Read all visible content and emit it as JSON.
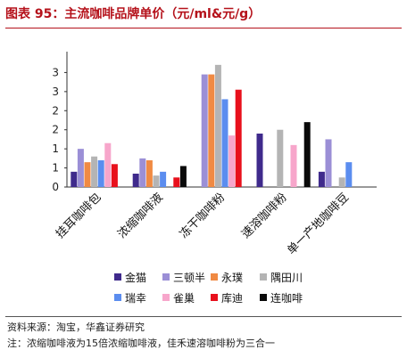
{
  "title": "图表 95：主流咖啡品牌单价（元/ml&元/g）",
  "footer": {
    "source": "资料来源：淘宝，华鑫证券研究",
    "note": "注：浓缩咖啡液为15倍浓缩咖啡液，佳禾速溶咖啡粉为三合一"
  },
  "chart_data": {
    "type": "bar",
    "categories": [
      "挂耳咖啡包",
      "浓缩咖啡液",
      "冻干咖啡粉",
      "速溶咖啡粉",
      "单一产地咖啡豆"
    ],
    "y_tick_labels": [
      "0",
      "1",
      "1",
      "2",
      "2",
      "3",
      "3"
    ],
    "ylim": [
      0,
      3.5
    ],
    "grid": false,
    "legend_position": "bottom",
    "series": [
      {
        "name": "金猫",
        "color": "#3f2a8c",
        "values": [
          0.4,
          0.35,
          0,
          1.4,
          0.4
        ]
      },
      {
        "name": "三顿半",
        "color": "#9b8fd6",
        "values": [
          1.0,
          0.75,
          2.95,
          0,
          1.25
        ]
      },
      {
        "name": "永璞",
        "color": "#f08a43",
        "values": [
          0.65,
          0.7,
          2.95,
          0,
          0
        ]
      },
      {
        "name": "隅田川",
        "color": "#b4b4b4",
        "values": [
          0.8,
          0.3,
          3.2,
          1.5,
          0.25
        ]
      },
      {
        "name": "瑞幸",
        "color": "#5b8def",
        "values": [
          0.7,
          0.4,
          2.3,
          0,
          0.65
        ]
      },
      {
        "name": "雀巢",
        "color": "#f7a6cb",
        "values": [
          1.15,
          0,
          1.35,
          1.1,
          0
        ]
      },
      {
        "name": "库迪",
        "color": "#e8101c",
        "values": [
          0.6,
          0.25,
          2.55,
          0,
          0
        ]
      },
      {
        "name": "连咖啡",
        "color": "#0a0a0a",
        "values": [
          0,
          0.55,
          0,
          1.7,
          0
        ]
      }
    ]
  }
}
